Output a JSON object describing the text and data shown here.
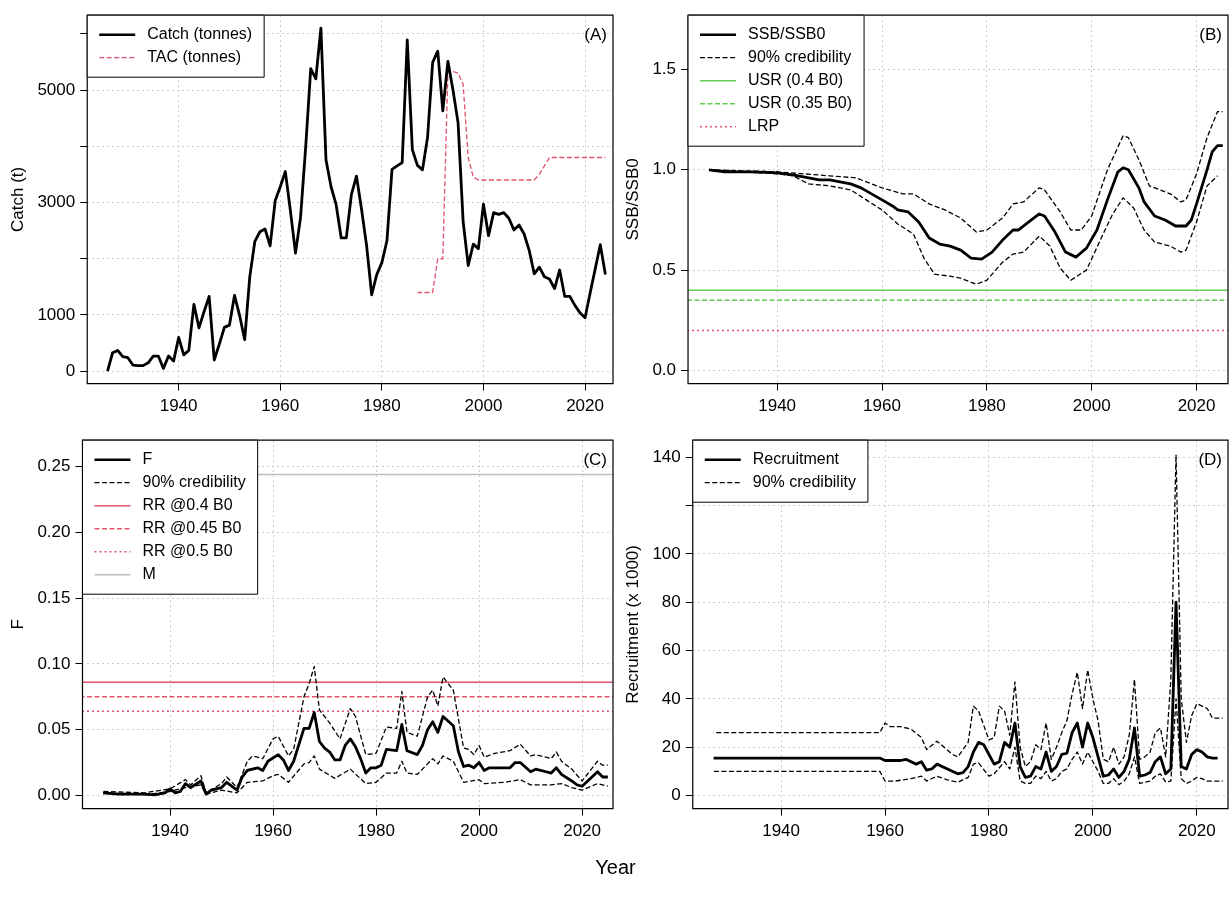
{
  "chart_data": [
    {
      "type": "line",
      "ylabel": "Catch (t)",
      "legend": "top left",
      "grid": true,
      "annotations": [
        "(A)"
      ],
      "xlim": [
        1922,
        2025.5
      ],
      "xticks": [
        1940,
        1960,
        1980,
        2000,
        2020
      ],
      "ylim": [
        -220,
        6330
      ],
      "yticks": [
        0,
        1000,
        {
          "value": 2000,
          "label": null
        },
        3000,
        {
          "value": 4000,
          "label": null
        },
        5000,
        {
          "value": 6000,
          "label": null
        }
      ],
      "series": [
        {
          "name": "Catch (tonnes)",
          "color": "#000000",
          "line_style": "solid",
          "x": [
            1926,
            1927,
            1928,
            1929,
            1930,
            1931,
            1932,
            1933,
            1934,
            1935,
            1936,
            1937,
            1938,
            1939,
            1940,
            1941,
            1942,
            1943,
            1944,
            1945,
            1946,
            1947,
            1948,
            1949,
            1950,
            1951,
            1952,
            1953,
            1954,
            1955,
            1956,
            1957,
            1958,
            1959,
            1960,
            1961,
            1962,
            1963,
            1964,
            1965,
            1966,
            1967,
            1968,
            1969,
            1970,
            1971,
            1972,
            1973,
            1974,
            1975,
            1976,
            1977,
            1978,
            1979,
            1980,
            1981,
            1982,
            1983,
            1984,
            1985,
            1986,
            1987,
            1988,
            1989,
            1990,
            1991,
            1992,
            1993,
            1994,
            1995,
            1996,
            1997,
            1998,
            1999,
            2000,
            2001,
            2002,
            2003,
            2004,
            2005,
            2006,
            2007,
            2008,
            2009,
            2010,
            2011,
            2012,
            2013,
            2014,
            2015,
            2016,
            2017,
            2018,
            2019,
            2020,
            2021,
            2022,
            2023,
            2024
          ],
          "values": [
            0,
            330,
            370,
            260,
            240,
            110,
            100,
            100,
            150,
            270,
            270,
            50,
            270,
            180,
            600,
            290,
            370,
            1190,
            770,
            1060,
            1330,
            200,
            480,
            780,
            820,
            1350,
            990,
            560,
            1680,
            2310,
            2480,
            2530,
            2230,
            3030,
            3280,
            3550,
            2850,
            2100,
            2740,
            3980,
            5380,
            5200,
            6100,
            3760,
            3280,
            2960,
            2370,
            2370,
            3140,
            3470,
            2880,
            2230,
            1360,
            1720,
            1930,
            2320,
            3590,
            3650,
            3710,
            5890,
            3940,
            3660,
            3580,
            4160,
            5490,
            5690,
            4630,
            5510,
            5000,
            4420,
            2660,
            1880,
            2260,
            2180,
            2970,
            2410,
            2820,
            2790,
            2820,
            2720,
            2510,
            2600,
            2440,
            2150,
            1730,
            1850,
            1680,
            1640,
            1470,
            1800,
            1330,
            1330,
            1170,
            1040,
            950,
            1390,
            1820,
            2250,
            1720
          ]
        },
        {
          "name": "TAC (tonnes)",
          "color": "#df536b",
          "line_style": "dashed",
          "x": [
            1987,
            1988,
            1989,
            1990,
            1991,
            1992,
            1993,
            1994,
            1995,
            1996,
            1997,
            1998,
            1999,
            2000,
            2010,
            2011,
            2012,
            2013,
            2024
          ],
          "values": [
            1400,
            1400,
            1400,
            1400,
            2000,
            2000,
            5330,
            5330,
            5300,
            5100,
            3800,
            3450,
            3400,
            3400,
            3400,
            3500,
            3650,
            3800,
            3800
          ]
        }
      ]
    },
    {
      "type": "line",
      "ylabel": "SSB/SSB0",
      "legend": "top left",
      "grid": true,
      "annotations": [
        "(B)"
      ],
      "xlim": [
        1923,
        2026
      ],
      "xticks": [
        1940,
        1960,
        1980,
        2000,
        2020
      ],
      "ylim": [
        -0.065,
        1.77
      ],
      "yticks": [
        {
          "value": 0,
          "label": "0.0"
        },
        0.5,
        {
          "value": 1,
          "label": "1.0"
        },
        1.5
      ],
      "series": [
        {
          "name": "SSB/SSB0",
          "color": "#000000",
          "line_style": "solid",
          "x": [
            1927,
            1930,
            1935,
            1940,
            1943,
            1946,
            1948,
            1950,
            1952,
            1954,
            1956,
            1958,
            1960,
            1962,
            1963,
            1965,
            1967,
            1969,
            1971,
            1973,
            1975,
            1977,
            1979,
            1981,
            1983,
            1985,
            1986,
            1988,
            1990,
            1991,
            1993,
            1995,
            1997,
            1999,
            2001,
            2003,
            2005,
            2006,
            2007,
            2009,
            2010,
            2012,
            2014,
            2016,
            2018,
            2019,
            2020,
            2022,
            2023,
            2024,
            2025
          ],
          "values": [
            1.0,
            0.99,
            0.99,
            0.985,
            0.975,
            0.96,
            0.95,
            0.95,
            0.94,
            0.93,
            0.91,
            0.88,
            0.85,
            0.82,
            0.8,
            0.79,
            0.74,
            0.66,
            0.63,
            0.62,
            0.6,
            0.56,
            0.555,
            0.59,
            0.65,
            0.7,
            0.7,
            0.74,
            0.78,
            0.77,
            0.69,
            0.59,
            0.565,
            0.61,
            0.7,
            0.85,
            0.99,
            1.01,
            1.0,
            0.91,
            0.84,
            0.77,
            0.75,
            0.72,
            0.72,
            0.75,
            0.83,
            1.0,
            1.09,
            1.12,
            1.12
          ]
        },
        {
          "name": "90% credibility",
          "color": "#000000",
          "line_style": "dashed",
          "x": [
            1927,
            1940,
            1945,
            1950,
            1955,
            1960,
            1964,
            1966,
            1969,
            1972,
            1975,
            1978,
            1980,
            1983,
            1985,
            1987,
            1990,
            1991,
            1994,
            1996,
            1998,
            2000,
            2003,
            2006,
            2007,
            2009,
            2011,
            2013,
            2015,
            2017,
            2018,
            2020,
            2022,
            2024,
            2025
          ],
          "values": [
            1.0,
            0.99,
            0.98,
            0.97,
            0.96,
            0.91,
            0.88,
            0.88,
            0.83,
            0.8,
            0.76,
            0.69,
            0.7,
            0.76,
            0.83,
            0.84,
            0.91,
            0.9,
            0.79,
            0.7,
            0.7,
            0.77,
            1.0,
            1.17,
            1.16,
            1.05,
            0.92,
            0.9,
            0.88,
            0.84,
            0.85,
            0.98,
            1.16,
            1.29,
            1.29
          ]
        },
        {
          "color": "#000000",
          "line_style": "dashed",
          "x": [
            1927,
            1940,
            1943,
            1946,
            1950,
            1954,
            1957,
            1960,
            1963,
            1966,
            1968,
            1970,
            1973,
            1975,
            1978,
            1980,
            1983,
            1985,
            1987,
            1990,
            1992,
            1994,
            1996,
            1999,
            2002,
            2004,
            2006,
            2008,
            2010,
            2012,
            2015,
            2017,
            2018,
            2020,
            2022,
            2024
          ],
          "values": [
            1.0,
            0.98,
            0.97,
            0.93,
            0.92,
            0.9,
            0.85,
            0.8,
            0.73,
            0.68,
            0.56,
            0.48,
            0.47,
            0.46,
            0.43,
            0.45,
            0.54,
            0.58,
            0.59,
            0.67,
            0.62,
            0.51,
            0.45,
            0.5,
            0.67,
            0.78,
            0.86,
            0.81,
            0.7,
            0.64,
            0.62,
            0.59,
            0.6,
            0.74,
            0.92,
            0.97
          ]
        }
      ],
      "ref_lines": [
        {
          "axis": "y",
          "value": 0.4,
          "label": "USR (0.4 B0)",
          "color": "#61d04f",
          "line_style": "solid"
        },
        {
          "axis": "y",
          "value": 0.35,
          "label": "USR (0.35 B0)",
          "color": "#61d04f",
          "line_style": "dashed"
        },
        {
          "axis": "y",
          "value": 0.2,
          "label": "LRP",
          "color": "#df536b",
          "line_style": "dotted"
        }
      ]
    },
    {
      "type": "line",
      "ylabel": "F",
      "legend": "top left",
      "grid": true,
      "annotations": [
        "(C)"
      ],
      "xlim": [
        1923,
        2026
      ],
      "xticks": [
        1940,
        1960,
        1980,
        2000,
        2020
      ],
      "ylim": [
        -0.01,
        0.27
      ],
      "yticks": [
        {
          "value": 0,
          "label": "0.00"
        },
        0.05,
        {
          "value": 0.1,
          "label": "0.10"
        },
        0.15,
        {
          "value": 0.2,
          "label": "0.20"
        },
        0.25
      ],
      "series": [
        {
          "name": "F",
          "color": "#000000",
          "line_style": "solid",
          "x": [
            1927,
            1930,
            1935,
            1937,
            1939,
            1940,
            1941,
            1942,
            1943,
            1944,
            1946,
            1947,
            1948,
            1950,
            1951,
            1953,
            1954,
            1955,
            1957,
            1958,
            1959,
            1961,
            1962,
            1963,
            1964,
            1966,
            1967,
            1968,
            1969,
            1970,
            1971,
            1972,
            1973,
            1974,
            1975,
            1976,
            1977,
            1978,
            1979,
            1980,
            1981,
            1982,
            1984,
            1985,
            1986,
            1988,
            1989,
            1990,
            1991,
            1992,
            1993,
            1995,
            1996,
            1997,
            1998,
            1999,
            2000,
            2001,
            2002,
            2005,
            2006,
            2007,
            2008,
            2010,
            2011,
            2013,
            2014,
            2015,
            2016,
            2018,
            2019,
            2020,
            2023,
            2024,
            2025
          ],
          "values": [
            0.002,
            0.001,
            0.001,
            0.0005,
            0.002,
            0.005,
            0.002,
            0.003,
            0.009,
            0.006,
            0.011,
            0.001,
            0.004,
            0.006,
            0.01,
            0.004,
            0.014,
            0.019,
            0.021,
            0.019,
            0.026,
            0.031,
            0.027,
            0.019,
            0.026,
            0.051,
            0.051,
            0.063,
            0.041,
            0.036,
            0.033,
            0.027,
            0.027,
            0.038,
            0.043,
            0.037,
            0.028,
            0.017,
            0.021,
            0.021,
            0.023,
            0.035,
            0.034,
            0.054,
            0.034,
            0.031,
            0.038,
            0.05,
            0.056,
            0.048,
            0.06,
            0.053,
            0.033,
            0.022,
            0.023,
            0.021,
            0.025,
            0.019,
            0.021,
            0.021,
            0.021,
            0.025,
            0.025,
            0.018,
            0.02,
            0.018,
            0.017,
            0.021,
            0.016,
            0.011,
            0.008,
            0.007,
            0.018,
            0.014,
            0.014
          ]
        },
        {
          "name": "90% credibility",
          "color": "#000000",
          "line_style": "dashed",
          "x": [
            1927,
            1935,
            1940,
            1943,
            1944,
            1946,
            1947,
            1950,
            1951,
            1953,
            1955,
            1956,
            1958,
            1960,
            1961,
            1963,
            1964,
            1966,
            1967,
            1968,
            1969,
            1971,
            1973,
            1975,
            1976,
            1978,
            1980,
            1982,
            1984,
            1985,
            1986,
            1988,
            1990,
            1991,
            1992,
            1993,
            1995,
            1996,
            1997,
            1998,
            1999,
            2000,
            2001,
            2003,
            2006,
            2008,
            2010,
            2011,
            2014,
            2015,
            2016,
            2018,
            2020,
            2023,
            2024,
            2025
          ],
          "values": [
            0.003,
            0.002,
            0.005,
            0.012,
            0.008,
            0.015,
            0.002,
            0.009,
            0.014,
            0.006,
            0.026,
            0.03,
            0.028,
            0.043,
            0.045,
            0.03,
            0.035,
            0.075,
            0.085,
            0.098,
            0.065,
            0.055,
            0.043,
            0.066,
            0.06,
            0.031,
            0.032,
            0.052,
            0.051,
            0.079,
            0.048,
            0.045,
            0.075,
            0.08,
            0.068,
            0.09,
            0.08,
            0.058,
            0.036,
            0.035,
            0.031,
            0.038,
            0.029,
            0.032,
            0.034,
            0.039,
            0.03,
            0.031,
            0.028,
            0.033,
            0.026,
            0.02,
            0.011,
            0.026,
            0.023,
            0.023
          ]
        },
        {
          "color": "#000000",
          "line_style": "dashed",
          "x": [
            1927,
            1935,
            1940,
            1943,
            1946,
            1947,
            1950,
            1953,
            1955,
            1958,
            1960,
            1961,
            1963,
            1966,
            1967,
            1968,
            1969,
            1972,
            1975,
            1978,
            1980,
            1982,
            1984,
            1985,
            1986,
            1988,
            1991,
            1992,
            1993,
            1995,
            1996,
            1997,
            2000,
            2001,
            2005,
            2008,
            2010,
            2014,
            2016,
            2018,
            2020,
            2023,
            2025
          ],
          "values": [
            0.002,
            0.0005,
            0.003,
            0.006,
            0.008,
            0.001,
            0.004,
            0.002,
            0.01,
            0.011,
            0.015,
            0.016,
            0.01,
            0.024,
            0.025,
            0.03,
            0.02,
            0.013,
            0.02,
            0.009,
            0.01,
            0.017,
            0.017,
            0.026,
            0.017,
            0.016,
            0.028,
            0.024,
            0.03,
            0.026,
            0.018,
            0.01,
            0.012,
            0.009,
            0.01,
            0.012,
            0.008,
            0.008,
            0.009,
            0.006,
            0.004,
            0.009,
            0.007
          ]
        }
      ],
      "ref_lines": [
        {
          "axis": "y",
          "value": 0.086,
          "label": "RR @0.4 B0",
          "color": "#df536b",
          "line_style": "solid"
        },
        {
          "axis": "y",
          "value": 0.075,
          "label": "RR @0.45 B0",
          "color": "#df536b",
          "line_style": "dashed"
        },
        {
          "axis": "y",
          "value": 0.064,
          "label": "RR @0.5 B0",
          "color": "#df536b",
          "line_style": "dotted"
        },
        {
          "axis": "y",
          "value": 0.244,
          "label": "M",
          "color": "#bebebe",
          "line_style": "solid"
        }
      ]
    },
    {
      "type": "line",
      "ylabel": "Recruitment (x 1000)",
      "xlabel": "Year",
      "legend": "top left",
      "grid": true,
      "annotations": [
        "(D)"
      ],
      "xlim": [
        1923,
        2026
      ],
      "xticks": [
        1940,
        1960,
        1980,
        2000,
        2020
      ],
      "ylim": [
        -5.4,
        147
      ],
      "yticks": [
        0,
        20,
        40,
        60,
        80,
        100,
        {
          "value": 120,
          "label": null
        },
        140
      ],
      "series": [
        {
          "name": "Recruitment",
          "color": "#000000",
          "line_style": "solid",
          "x": [
            1927,
            1959,
            1960,
            1963,
            1964,
            1966,
            1967,
            1968,
            1969,
            1970,
            1972,
            1974,
            1975,
            1976,
            1977,
            1978,
            1979,
            1981,
            1982,
            1983,
            1984,
            1985,
            1986,
            1987,
            1988,
            1989,
            1990,
            1991,
            1992,
            1993,
            1994,
            1995,
            1996,
            1997,
            1998,
            1999,
            2000,
            2001,
            2002,
            2003,
            2004,
            2005,
            2006,
            2007,
            2008,
            2009,
            2010,
            2011,
            2012,
            2013,
            2014,
            2015,
            2016,
            2017,
            2018,
            2019,
            2020,
            2021,
            2022,
            2023,
            2024
          ],
          "values": [
            15.5,
            15.5,
            14.5,
            14.5,
            15,
            13,
            14,
            10.5,
            11,
            13,
            11,
            9,
            9.5,
            12,
            18,
            22,
            21,
            13,
            14,
            22,
            20,
            30,
            12,
            7.5,
            8,
            12,
            11,
            18,
            10,
            12,
            17,
            17.5,
            26,
            30,
            20,
            30,
            24,
            16,
            8,
            8.5,
            11,
            7.5,
            10,
            15,
            28,
            8,
            8.5,
            9.5,
            14,
            16,
            9,
            11,
            80,
            12,
            11,
            17,
            19,
            18,
            16,
            15.5,
            15.5
          ]
        },
        {
          "name": "90% credibility",
          "color": "#000000",
          "line_style": "dashed",
          "x": [
            1927,
            1959,
            1960,
            1961,
            1963,
            1965,
            1967,
            1968,
            1970,
            1973,
            1974,
            1976,
            1977,
            1978,
            1980,
            1981,
            1982,
            1983,
            1984,
            1985,
            1986,
            1987,
            1988,
            1989,
            1990,
            1991,
            1992,
            1993,
            1994,
            1995,
            1996,
            1997,
            1998,
            1999,
            2000,
            2001,
            2002,
            2003,
            2004,
            2005,
            2006,
            2007,
            2008,
            2009,
            2010,
            2011,
            2012,
            2013,
            2014,
            2015,
            2016,
            2017,
            2018,
            2019,
            2020,
            2021,
            2022,
            2023,
            2025
          ],
          "values": [
            26,
            26,
            30,
            28.5,
            28.5,
            27.5,
            24,
            19,
            22.5,
            17,
            16,
            22,
            37,
            35,
            23,
            24,
            37,
            35,
            25,
            47,
            20,
            12,
            14,
            21,
            19,
            30,
            15,
            20,
            26,
            31,
            42,
            51,
            36,
            52,
            40,
            31,
            15,
            14,
            20,
            13,
            16,
            25,
            48,
            15,
            16,
            18,
            26,
            28,
            16,
            48,
            141,
            40,
            22,
            33,
            38,
            37,
            36,
            32,
            32
          ]
        },
        {
          "color": "#000000",
          "line_style": "dashed",
          "x": [
            1927,
            1959,
            1960,
            1962,
            1965,
            1967,
            1968,
            1970,
            1972,
            1974,
            1976,
            1977,
            1978,
            1980,
            1981,
            1983,
            1984,
            1985,
            1986,
            1987,
            1988,
            1989,
            1990,
            1991,
            1992,
            1993,
            1994,
            1995,
            1996,
            1997,
            1998,
            1999,
            2000,
            2001,
            2002,
            2003,
            2004,
            2005,
            2006,
            2007,
            2008,
            2009,
            2010,
            2011,
            2012,
            2013,
            2014,
            2015,
            2016,
            2017,
            2018,
            2019,
            2020,
            2021,
            2022,
            2025
          ],
          "values": [
            10,
            10,
            6,
            6,
            7,
            8,
            6,
            8,
            6.5,
            5.5,
            7.5,
            13,
            13.5,
            8,
            9,
            14,
            11,
            20,
            6,
            5,
            5,
            8,
            7,
            10,
            6,
            7,
            10,
            11,
            15,
            18,
            13,
            18,
            14,
            10,
            5,
            5,
            7,
            4.5,
            6,
            9,
            16,
            5,
            5.5,
            6,
            8,
            9,
            5.5,
            6,
            40,
            7,
            5,
            6,
            7.5,
            7,
            6,
            6
          ]
        }
      ]
    }
  ]
}
